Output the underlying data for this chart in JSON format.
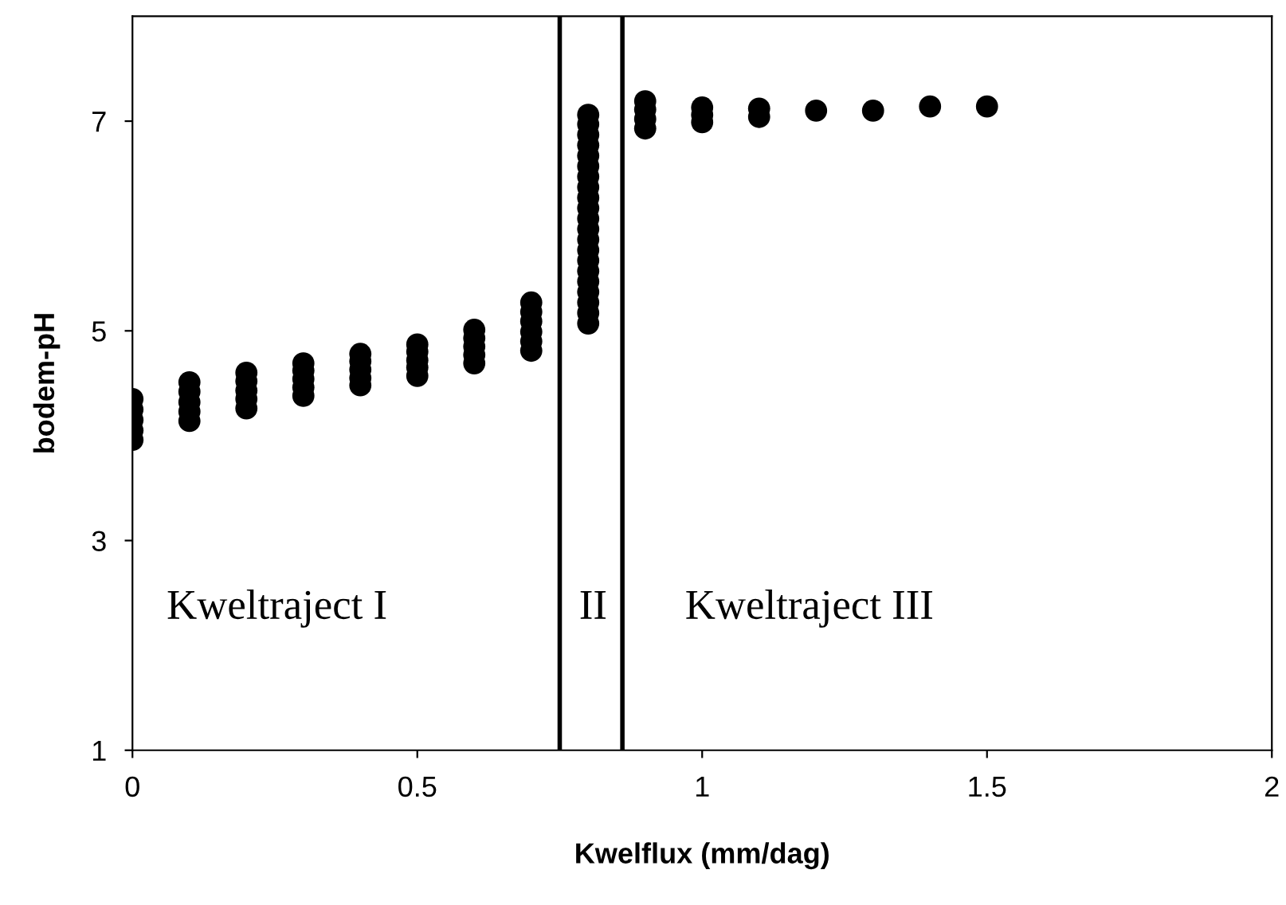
{
  "chart_data": {
    "type": "scatter",
    "xlabel": "Kwelflux (mm/dag)",
    "ylabel": "bodem-pH",
    "x": [
      0,
      0,
      0,
      0,
      0,
      0.1,
      0.1,
      0.1,
      0.1,
      0.1,
      0.2,
      0.2,
      0.2,
      0.2,
      0.2,
      0.3,
      0.3,
      0.3,
      0.3,
      0.3,
      0.4,
      0.4,
      0.4,
      0.4,
      0.4,
      0.5,
      0.5,
      0.5,
      0.5,
      0.5,
      0.6,
      0.6,
      0.6,
      0.6,
      0.6,
      0.7,
      0.7,
      0.7,
      0.7,
      0.7,
      0.7,
      0.8,
      0.8,
      0.8,
      0.8,
      0.8,
      0.8,
      0.8,
      0.8,
      0.8,
      0.8,
      0.8,
      0.8,
      0.8,
      0.8,
      0.8,
      0.8,
      0.8,
      0.8,
      0.8,
      0.8,
      0.8,
      0.9,
      0.9,
      0.9,
      0.9,
      1.0,
      1.0,
      1.0,
      1.1,
      1.1,
      1.2,
      1.3,
      1.4,
      1.5
    ],
    "series": [
      {
        "color": "#000000",
        "values": [
          3.96,
          4.05,
          4.15,
          4.25,
          4.35,
          4.14,
          4.23,
          4.32,
          4.42,
          4.51,
          4.26,
          4.35,
          4.43,
          4.52,
          4.6,
          4.38,
          4.46,
          4.54,
          4.62,
          4.69,
          4.48,
          4.55,
          4.63,
          4.71,
          4.78,
          4.57,
          4.65,
          4.72,
          4.8,
          4.87,
          4.69,
          4.77,
          4.85,
          4.93,
          5.01,
          4.81,
          4.9,
          4.99,
          5.09,
          5.18,
          5.27,
          5.07,
          5.17,
          5.27,
          5.37,
          5.47,
          5.57,
          5.67,
          5.77,
          5.87,
          5.97,
          6.07,
          6.17,
          6.27,
          6.37,
          6.47,
          6.57,
          6.67,
          6.77,
          6.87,
          6.97,
          7.06,
          6.93,
          7.02,
          7.11,
          7.19,
          6.99,
          7.06,
          7.13,
          7.04,
          7.12,
          7.1,
          7.1,
          7.14,
          7.14
        ]
      }
    ],
    "xlim": [
      0,
      2
    ],
    "xticks": [
      0,
      0.5,
      1,
      1.5,
      2
    ],
    "ylim": [
      1,
      8
    ],
    "yticks": [
      1,
      3,
      5,
      7
    ],
    "marker": "circle",
    "grid": false,
    "legend": false,
    "ref_lines": [
      {
        "axis": "x",
        "value": 0.75,
        "color": "#000000"
      },
      {
        "axis": "x",
        "value": 0.86,
        "color": "#000000"
      }
    ],
    "annotations": [
      "Kweltraject I",
      "II",
      "Kweltraject III"
    ]
  }
}
